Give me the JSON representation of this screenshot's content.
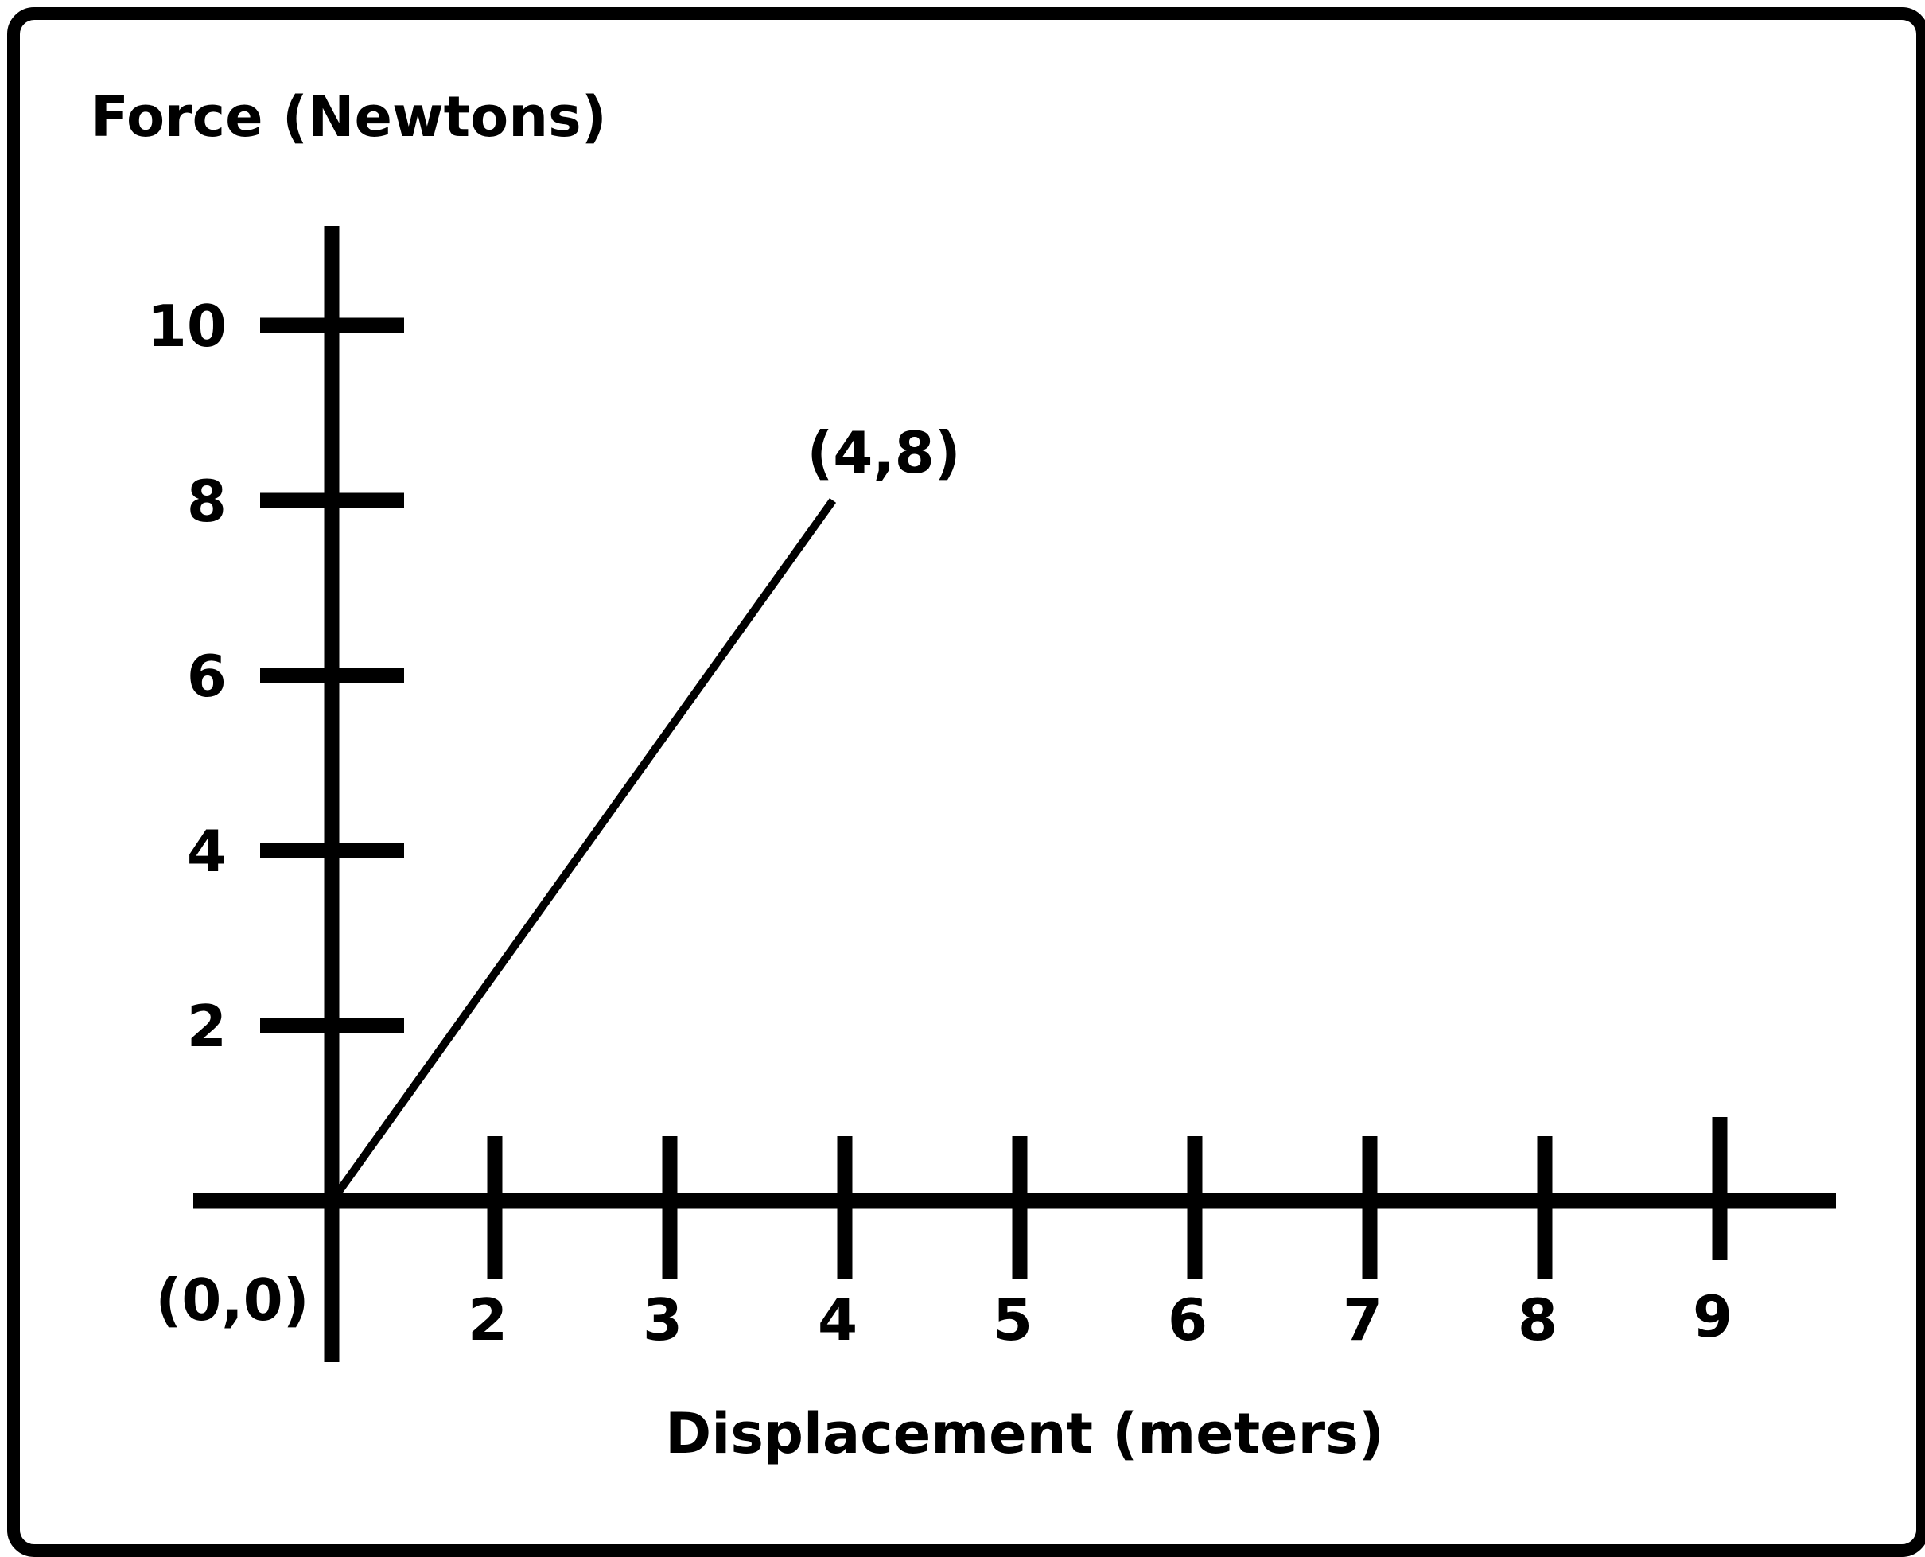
{
  "chart_data": {
    "type": "line",
    "title": "",
    "xlabel": "Displacement (meters)",
    "ylabel": "Force (Newtons)",
    "xlim": [
      0,
      9
    ],
    "ylim": [
      0,
      10
    ],
    "x_tick_labels": [
      "2",
      "3",
      "4",
      "5",
      "6",
      "7",
      "8",
      "9"
    ],
    "y_tick_labels": [
      "2",
      "4",
      "6",
      "8",
      "10"
    ],
    "grid": false,
    "legend": "none",
    "series": [
      {
        "x": [
          0,
          4
        ],
        "y": [
          0,
          8
        ],
        "color": "#000000"
      }
    ],
    "annotations": [
      {
        "text": "(0,0)",
        "x": 0,
        "y": 0
      },
      {
        "text": "(4,8)",
        "x": 4,
        "y": 8
      }
    ]
  }
}
